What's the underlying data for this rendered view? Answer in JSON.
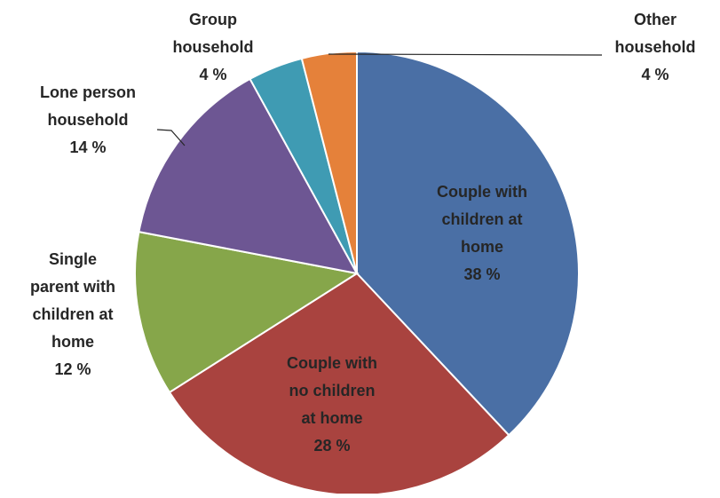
{
  "chart_data": {
    "type": "pie",
    "title": "",
    "slices": [
      {
        "label": "Couple with children at home",
        "label_lines": [
          "Couple with",
          "children at",
          "home"
        ],
        "value": 38,
        "value_text": "38 %",
        "color": "#4a6fa5"
      },
      {
        "label": "Couple with no children at home",
        "label_lines": [
          "Couple with",
          "no children",
          "at home"
        ],
        "value": 28,
        "value_text": "28 %",
        "color": "#a9433f"
      },
      {
        "label": "Single parent with children at home",
        "label_lines": [
          "Single",
          "parent with",
          "children at",
          "home"
        ],
        "value": 12,
        "value_text": "12 %",
        "color": "#86a64a"
      },
      {
        "label": "Lone person household",
        "label_lines": [
          "Lone person",
          "household"
        ],
        "value": 14,
        "value_text": "14 %",
        "color": "#6d5693"
      },
      {
        "label": "Group household",
        "label_lines": [
          "Group",
          "household"
        ],
        "value": 4,
        "value_text": "4 %",
        "color": "#3f9bb3"
      },
      {
        "label": "Other household",
        "label_lines": [
          "Other",
          "household"
        ],
        "value": 4,
        "value_text": "4 %",
        "color": "#e5813a"
      }
    ],
    "legend": "none",
    "label_position": "data labels on and around slices"
  }
}
